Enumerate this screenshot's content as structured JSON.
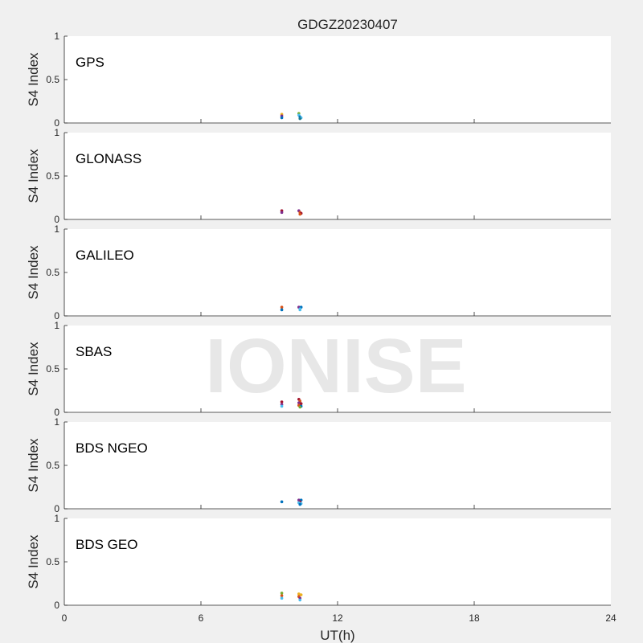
{
  "chart_data": {
    "type": "scatter",
    "title": "GDGZ20230407",
    "xlabel": "UT(h)",
    "ylabel": "S4 Index",
    "xlim": [
      0,
      24
    ],
    "ylim": [
      0,
      1
    ],
    "x_ticks": [
      "0",
      "6",
      "12",
      "18",
      "24"
    ],
    "y_ticks": [
      "0",
      "0.5",
      "1"
    ],
    "grid": false,
    "watermark": "IONISE",
    "panels": [
      {
        "name": "GPS",
        "points": [
          {
            "x": 9.55,
            "y": 0.1,
            "color": "#edb120"
          },
          {
            "x": 9.55,
            "y": 0.08,
            "color": "#7e2f8e"
          },
          {
            "x": 9.55,
            "y": 0.06,
            "color": "#0072bd"
          },
          {
            "x": 10.3,
            "y": 0.11,
            "color": "#77ac30"
          },
          {
            "x": 10.3,
            "y": 0.09,
            "color": "#4dbeee"
          },
          {
            "x": 10.35,
            "y": 0.07,
            "color": "#0072bd"
          },
          {
            "x": 10.4,
            "y": 0.06,
            "color": "#4dbeee"
          },
          {
            "x": 10.35,
            "y": 0.05,
            "color": "#1b7a8f"
          }
        ]
      },
      {
        "name": "GLONASS",
        "points": [
          {
            "x": 9.55,
            "y": 0.1,
            "color": "#a2142f"
          },
          {
            "x": 9.55,
            "y": 0.08,
            "color": "#7e2f8e"
          },
          {
            "x": 10.3,
            "y": 0.1,
            "color": "#7e2f8e"
          },
          {
            "x": 10.35,
            "y": 0.08,
            "color": "#d95319"
          },
          {
            "x": 10.4,
            "y": 0.07,
            "color": "#a2142f"
          },
          {
            "x": 10.35,
            "y": 0.06,
            "color": "#d95319"
          }
        ]
      },
      {
        "name": "GALILEO",
        "points": [
          {
            "x": 9.55,
            "y": 0.1,
            "color": "#d95319"
          },
          {
            "x": 9.55,
            "y": 0.07,
            "color": "#0072bd"
          },
          {
            "x": 10.3,
            "y": 0.1,
            "color": "#7e2f8e"
          },
          {
            "x": 10.4,
            "y": 0.1,
            "color": "#0072bd"
          },
          {
            "x": 10.35,
            "y": 0.08,
            "color": "#4dbeee"
          },
          {
            "x": 10.35,
            "y": 0.07,
            "color": "#4dbeee"
          }
        ]
      },
      {
        "name": "SBAS",
        "points": [
          {
            "x": 9.55,
            "y": 0.12,
            "color": "#a2142f"
          },
          {
            "x": 9.55,
            "y": 0.09,
            "color": "#7e2f8e"
          },
          {
            "x": 9.55,
            "y": 0.07,
            "color": "#4dbeee"
          },
          {
            "x": 10.3,
            "y": 0.15,
            "color": "#a2142f"
          },
          {
            "x": 10.35,
            "y": 0.13,
            "color": "#d95319"
          },
          {
            "x": 10.3,
            "y": 0.11,
            "color": "#7e2f8e"
          },
          {
            "x": 10.4,
            "y": 0.1,
            "color": "#a2142f"
          },
          {
            "x": 10.3,
            "y": 0.08,
            "color": "#d95319"
          },
          {
            "x": 10.4,
            "y": 0.07,
            "color": "#0072bd"
          },
          {
            "x": 10.35,
            "y": 0.06,
            "color": "#77ac30"
          }
        ]
      },
      {
        "name": "BDS NGEO",
        "points": [
          {
            "x": 9.55,
            "y": 0.08,
            "color": "#0072bd"
          },
          {
            "x": 10.3,
            "y": 0.1,
            "color": "#7e2f8e"
          },
          {
            "x": 10.4,
            "y": 0.1,
            "color": "#0072bd"
          },
          {
            "x": 10.35,
            "y": 0.08,
            "color": "#a2142f"
          },
          {
            "x": 10.3,
            "y": 0.07,
            "color": "#4dbeee"
          },
          {
            "x": 10.4,
            "y": 0.06,
            "color": "#4dbeee"
          },
          {
            "x": 10.35,
            "y": 0.05,
            "color": "#0072bd"
          }
        ]
      },
      {
        "name": "BDS GEO",
        "points": [
          {
            "x": 9.55,
            "y": 0.14,
            "color": "#77ac30"
          },
          {
            "x": 9.55,
            "y": 0.11,
            "color": "#d95319"
          },
          {
            "x": 9.55,
            "y": 0.08,
            "color": "#4dbeee"
          },
          {
            "x": 10.3,
            "y": 0.13,
            "color": "#edb120"
          },
          {
            "x": 10.4,
            "y": 0.12,
            "color": "#edb120"
          },
          {
            "x": 10.3,
            "y": 0.1,
            "color": "#d95319"
          },
          {
            "x": 10.35,
            "y": 0.08,
            "color": "#7e2f8e"
          },
          {
            "x": 10.35,
            "y": 0.06,
            "color": "#4dbeee"
          }
        ]
      }
    ]
  }
}
